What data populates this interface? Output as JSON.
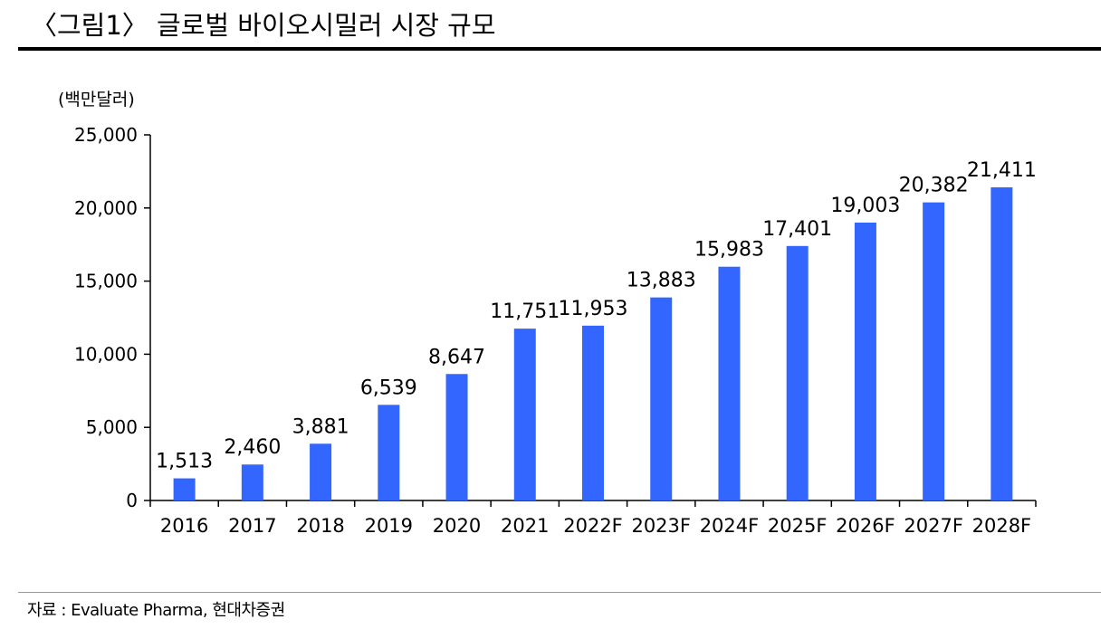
{
  "header": {
    "title": "〈그림1〉 글로벌 바이오시밀러 시장 규모"
  },
  "footer": {
    "source": "자료 : Evaluate Pharma, 현대차증권"
  },
  "colors": {
    "bar": "#3366ff",
    "axis": "#000000",
    "rule": "#000000"
  },
  "chart_data": {
    "type": "bar",
    "unit_label": "(백만달러)",
    "categories": [
      "2016",
      "2017",
      "2018",
      "2019",
      "2020",
      "2021",
      "2022F",
      "2023F",
      "2024F",
      "2025F",
      "2026F",
      "2027F",
      "2028F"
    ],
    "values": [
      1513,
      2460,
      3881,
      6539,
      8647,
      11751,
      11953,
      13883,
      15983,
      17401,
      19003,
      20382,
      21411
    ],
    "value_labels": [
      "1,513",
      "2,460",
      "3,881",
      "6,539",
      "8,647",
      "11,751",
      "11,953",
      "13,883",
      "15,983",
      "17,401",
      "19,003",
      "20,382",
      "21,411"
    ],
    "yticks": [
      0,
      5000,
      10000,
      15000,
      20000,
      25000
    ],
    "ytick_labels": [
      "0",
      "5,000",
      "10,000",
      "15,000",
      "20,000",
      "25,000"
    ],
    "ylim": [
      0,
      25000
    ],
    "grid": false,
    "legend": "none"
  }
}
